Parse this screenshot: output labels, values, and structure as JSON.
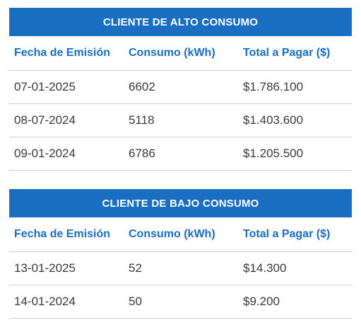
{
  "tables": [
    {
      "title": "CLIENTE DE ALTO CONSUMO",
      "columns": [
        "Fecha de Emisión",
        "Consumo (kWh)",
        "Total a Pagar ($)"
      ],
      "rows": [
        [
          "07-01-2025",
          "6602",
          "$1.786.100"
        ],
        [
          "08-07-2024",
          "5118",
          "$1.403.600"
        ],
        [
          "09-01-2024",
          "6786",
          "$1.205.500"
        ]
      ]
    },
    {
      "title": "CLIENTE DE BAJO CONSUMO",
      "columns": [
        "Fecha de Emisión",
        "Consumo (kWh)",
        "Total a Pagar ($)"
      ],
      "rows": [
        [
          "13-01-2025",
          "52",
          "$14.300"
        ],
        [
          "14-01-2024",
          "50",
          "$9.200"
        ]
      ]
    }
  ],
  "colors": {
    "header_bg": "#1a6ec2",
    "header_text": "#ffffff",
    "column_header_text": "#1a6ec2",
    "cell_text": "#3a3a3a",
    "divider": "#cfcfcf"
  }
}
